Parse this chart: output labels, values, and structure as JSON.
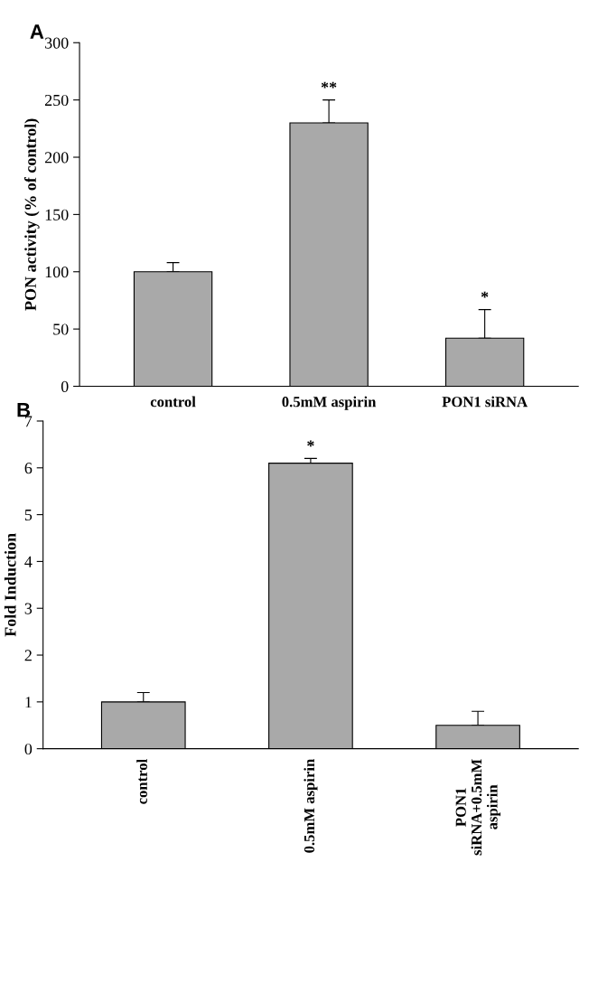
{
  "chart_data": [
    {
      "type": "bar",
      "title": "A",
      "ylabel": "PON activity (% of control)",
      "categories": [
        "control",
        "0.5mM aspirin",
        "PON1 siRNA"
      ],
      "values": [
        100,
        230,
        42
      ],
      "errors": [
        [
          100,
          108
        ],
        [
          230,
          250
        ],
        [
          42,
          67
        ]
      ],
      "color": "#a9a9a9",
      "ylim": [
        0,
        300
      ],
      "yticks": [
        0,
        50,
        100,
        150,
        200,
        250,
        300
      ],
      "grid": false,
      "legend": false,
      "annotations": [
        {
          "text": "**",
          "x": "0.5mM aspirin",
          "y": 250
        },
        {
          "text": "*",
          "x": "PON1 siRNA",
          "y": 67
        }
      ]
    },
    {
      "type": "bar",
      "title": "B",
      "ylabel": "Fold Induction",
      "categories": [
        "control",
        "0.5mM aspirin",
        "PON1\nsiRNA+0.5mM\naspirin"
      ],
      "values": [
        1.0,
        6.1,
        0.5
      ],
      "errors": [
        [
          1.0,
          1.2
        ],
        [
          6.1,
          6.2
        ],
        [
          0.5,
          0.8
        ]
      ],
      "color": "#a9a9a9",
      "ylim": [
        0,
        7
      ],
      "yticks": [
        0,
        1,
        2,
        3,
        4,
        5,
        6,
        7
      ],
      "grid": false,
      "legend": false,
      "annotations": [
        {
          "text": "*",
          "x": "0.5mM aspirin",
          "y": 6.2
        }
      ]
    }
  ]
}
